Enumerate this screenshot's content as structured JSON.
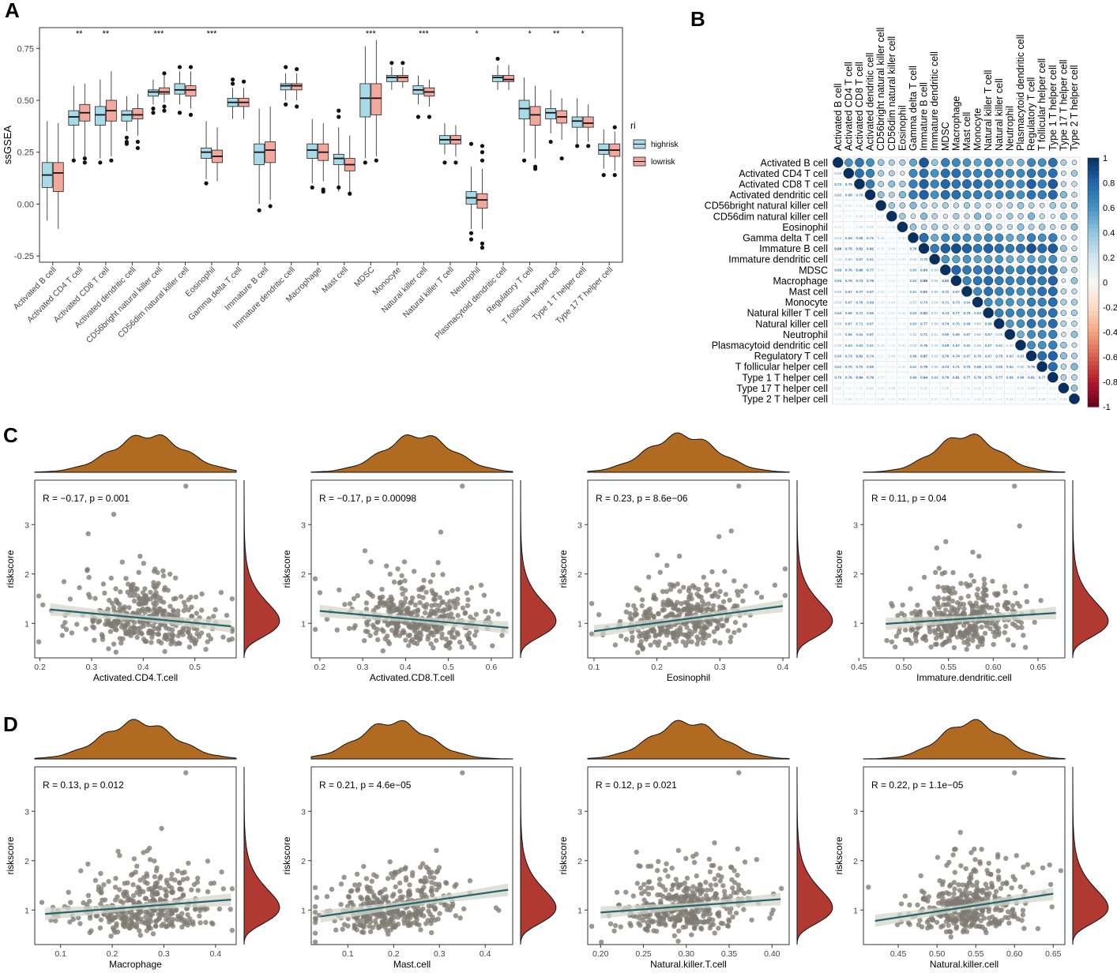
{
  "figure": {
    "panel_labels": [
      "A",
      "B",
      "C",
      "D"
    ],
    "colors": {
      "highrisk": "#a8dbe8",
      "lowrisk": "#f3a89d",
      "density_x": "#b06a22",
      "density_y": "#b03a32",
      "point": "#7f7b72",
      "fit": "#23656a",
      "band": "#d5d5cc",
      "corr_pos": "#053061",
      "corr_mid": "#f7f7f7",
      "corr_neg": "#67001f"
    }
  },
  "chart_data": [
    {
      "panel": "A",
      "type": "box",
      "ylabel": "ssGSEA",
      "ylim": [
        -0.28,
        0.85
      ],
      "yticks": [
        -0.25,
        0.0,
        0.25,
        0.5,
        0.75
      ],
      "ytick_labels": [
        "-0.25",
        "0.00",
        "0.25",
        "0.50",
        "0.75"
      ],
      "legend": {
        "title": "ri",
        "entries": [
          "highrisk",
          "lowrisk"
        ]
      },
      "categories": [
        "Activated B cell",
        "Activated CD4 T cell",
        "Activated CD8 T cell",
        "Activated dendritic cell",
        "CD56bright natural killer cell",
        "CD56dim natural killer cell",
        "Eosinophil",
        "Gamma delta T cell",
        "Immature B cell",
        "Immature dendritic cell",
        "Macrophage",
        "Mast cell",
        "MDSC",
        "Monocyte",
        "Natural killer cell",
        "Natural killer T cell",
        "Neutrophil",
        "Plasmacytoid dendritic cell",
        "Regulatory T cell",
        "T follicular helper cell",
        "Type 1 T helper cell",
        "Type 17 T helper cell"
      ],
      "significance": [
        "",
        "**",
        "**",
        "",
        "***",
        "",
        "***",
        "",
        "",
        "",
        "",
        "",
        "***",
        "",
        "***",
        "",
        "*",
        "",
        "*",
        "**",
        "*",
        ""
      ],
      "series": [
        {
          "name": "highrisk",
          "boxes": [
            [
              -0.08,
              0.08,
              0.14,
              0.2,
              0.4
            ],
            [
              0.22,
              0.38,
              0.42,
              0.45,
              0.57
            ],
            [
              0.22,
              0.38,
              0.43,
              0.47,
              0.6
            ],
            [
              0.35,
              0.4,
              0.43,
              0.45,
              0.52
            ],
            [
              0.48,
              0.52,
              0.54,
              0.55,
              0.6
            ],
            [
              0.48,
              0.53,
              0.55,
              0.58,
              0.64
            ],
            [
              0.12,
              0.22,
              0.25,
              0.27,
              0.4
            ],
            [
              0.41,
              0.47,
              0.49,
              0.51,
              0.56
            ],
            [
              0.0,
              0.19,
              0.25,
              0.29,
              0.46
            ],
            [
              0.5,
              0.55,
              0.57,
              0.58,
              0.63
            ],
            [
              0.1,
              0.22,
              0.26,
              0.29,
              0.41
            ],
            [
              0.06,
              0.19,
              0.22,
              0.24,
              0.37
            ],
            [
              0.22,
              0.42,
              0.51,
              0.58,
              0.76
            ],
            [
              0.55,
              0.59,
              0.61,
              0.62,
              0.66
            ],
            [
              0.48,
              0.53,
              0.55,
              0.57,
              0.62
            ],
            [
              0.24,
              0.29,
              0.31,
              0.33,
              0.39
            ],
            [
              -0.12,
              0.0,
              0.03,
              0.06,
              0.18
            ],
            [
              0.55,
              0.59,
              0.61,
              0.62,
              0.67
            ],
            [
              0.25,
              0.41,
              0.46,
              0.5,
              0.61
            ],
            [
              0.34,
              0.41,
              0.44,
              0.46,
              0.55
            ],
            [
              0.29,
              0.37,
              0.4,
              0.42,
              0.51
            ],
            [
              0.17,
              0.24,
              0.26,
              0.29,
              0.36
            ]
          ]
        },
        {
          "name": "lowrisk",
          "boxes": [
            [
              -0.12,
              0.06,
              0.15,
              0.2,
              0.39
            ],
            [
              0.22,
              0.4,
              0.44,
              0.48,
              0.58
            ],
            [
              0.23,
              0.4,
              0.45,
              0.5,
              0.64
            ],
            [
              0.33,
              0.41,
              0.43,
              0.46,
              0.53
            ],
            [
              0.49,
              0.53,
              0.54,
              0.56,
              0.62
            ],
            [
              0.46,
              0.52,
              0.55,
              0.57,
              0.64
            ],
            [
              0.11,
              0.2,
              0.23,
              0.26,
              0.37
            ],
            [
              0.41,
              0.47,
              0.49,
              0.51,
              0.56
            ],
            [
              0.02,
              0.2,
              0.26,
              0.3,
              0.47
            ],
            [
              0.5,
              0.55,
              0.57,
              0.58,
              0.63
            ],
            [
              0.11,
              0.21,
              0.25,
              0.29,
              0.39
            ],
            [
              0.04,
              0.16,
              0.19,
              0.22,
              0.33
            ],
            [
              0.23,
              0.43,
              0.51,
              0.58,
              0.79
            ],
            [
              0.56,
              0.59,
              0.61,
              0.62,
              0.66
            ],
            [
              0.47,
              0.52,
              0.54,
              0.56,
              0.6
            ],
            [
              0.23,
              0.29,
              0.31,
              0.33,
              0.38
            ],
            [
              -0.12,
              -0.02,
              0.02,
              0.05,
              0.17
            ],
            [
              0.55,
              0.59,
              0.6,
              0.62,
              0.67
            ],
            [
              0.22,
              0.38,
              0.43,
              0.47,
              0.57
            ],
            [
              0.31,
              0.39,
              0.42,
              0.45,
              0.51
            ],
            [
              0.3,
              0.37,
              0.39,
              0.42,
              0.48
            ],
            [
              0.16,
              0.23,
              0.26,
              0.29,
              0.35
            ]
          ]
        }
      ],
      "outliers": [
        [
          [],
          []
        ],
        [
          [
            0.21
          ],
          [
            0.2,
            0.22
          ]
        ],
        [
          [
            0.2
          ],
          [
            0.21
          ]
        ],
        [
          [
            0.32,
            0.3,
            0.29
          ],
          [
            0.3,
            0.27
          ]
        ],
        [
          [
            0.46,
            0.44
          ],
          [
            0.63,
            0.47,
            0.45
          ]
        ],
        [
          [
            0.66,
            0.44
          ],
          [
            0.66,
            0.43
          ]
        ],
        [
          [
            0.1
          ],
          []
        ],
        [
          [
            0.6,
            0.58
          ],
          [
            0.59
          ]
        ],
        [
          [
            -0.03
          ],
          [
            -0.01
          ]
        ],
        [
          [
            0.66,
            0.48
          ],
          [
            0.65,
            0.47
          ]
        ],
        [
          [
            0.08
          ],
          [
            0.07,
            0.06
          ]
        ],
        [
          [
            0.45,
            0.42,
            0.08
          ],
          [
            0.05
          ]
        ],
        [
          [
            0.2
          ],
          [
            0.21
          ]
        ],
        [
          [
            0.68
          ],
          [
            0.68
          ]
        ],
        [
          [
            0.42
          ],
          [
            0.42
          ]
        ],
        [
          [
            0.2
          ],
          [
            0.2
          ]
        ],
        [
          [
            0.29,
            -0.17,
            -0.14
          ],
          [
            0.28,
            0.25,
            0.21,
            -0.19,
            -0.21
          ]
        ],
        [
          [
            0.7
          ],
          []
        ],
        [
          [
            0.21
          ],
          [
            0.18,
            0.17
          ]
        ],
        [
          [
            0.3
          ],
          [
            0.22
          ]
        ],
        [
          [
            0.28
          ],
          [
            0.28
          ]
        ],
        [
          [
            0.14
          ],
          [
            0.14,
            0.37
          ]
        ]
      ]
    },
    {
      "panel": "B",
      "type": "heatmap",
      "labels": [
        "Activated B cell",
        "Activated CD4 T cell",
        "Activated CD8 T cell",
        "Activated dendritic cell",
        "CD56bright natural killer cell",
        "CD56dim natural killer cell",
        "Eosinophil",
        "Gamma delta T cell",
        "Immature B cell",
        "Immature dendritic cell",
        "MDSC",
        "Macrophage",
        "Mast cell",
        "Monocyte",
        "Natural killer T cell",
        "Natural killer cell",
        "Neutrophil",
        "Plasmacytoid dendritic cell",
        "Regulatory T cell",
        "T follicular helper cell",
        "Type 1 T helper cell",
        "Type 17 T helper cell",
        "Type 2 T helper cell"
      ],
      "colorbar_ticks": [
        "1",
        "0.8",
        "0.6",
        "0.4",
        "0.2",
        "0",
        "-0.2",
        "-0.4",
        "-0.6",
        "-0.8",
        "-1"
      ],
      "coeff_first_column": [
        null,
        0.6,
        0.73,
        0.62,
        0.39,
        0.33,
        0.34,
        0.53,
        0.86,
        0.39,
        0.69,
        0.65,
        0.6,
        0.53,
        0.64,
        0.58,
        0.46,
        0.48,
        0.65,
        0.62,
        0.75,
        0.33,
        0.22
      ]
    },
    {
      "panel": "C",
      "type": "scatter",
      "plots": [
        {
          "xlabel": "Activated.CD4.T.cell",
          "ylabel": "riskscore",
          "stat": "R = −0.17, p = 0.001",
          "xlim": [
            0.19,
            0.58
          ],
          "xticks": [
            0.2,
            0.3,
            0.4,
            0.5
          ],
          "xtick_labels": [
            "0.2",
            "0.3",
            "0.4",
            "0.5"
          ],
          "ylim": [
            0.3,
            3.9
          ],
          "yticks": [
            1,
            2,
            3
          ],
          "ytick_labels": [
            "1",
            "2",
            "3"
          ],
          "fit": [
            [
              0.22,
              1.28
            ],
            [
              0.57,
              0.94
            ]
          ],
          "x_center": 0.41,
          "x_spread": 0.07
        },
        {
          "xlabel": "Activated.CD8.T.cell",
          "ylabel": "riskscore",
          "stat": "R = −0.17, p = 0.00098",
          "xlim": [
            0.18,
            0.65
          ],
          "xticks": [
            0.2,
            0.3,
            0.4,
            0.5,
            0.6
          ],
          "xtick_labels": [
            "0.2",
            "0.3",
            "0.4",
            "0.5",
            "0.6"
          ],
          "ylim": [
            0.3,
            3.9
          ],
          "yticks": [
            1,
            2,
            3
          ],
          "ytick_labels": [
            "1",
            "2",
            "3"
          ],
          "fit": [
            [
              0.2,
              1.25
            ],
            [
              0.64,
              0.91
            ]
          ],
          "x_center": 0.43,
          "x_spread": 0.08
        },
        {
          "xlabel": "Eosinophil",
          "ylabel": "riskscore",
          "stat": "R = 0.23, p = 8.6e−06",
          "xlim": [
            0.09,
            0.41
          ],
          "xticks": [
            0.1,
            0.2,
            0.3,
            0.4
          ],
          "xtick_labels": [
            "0.1",
            "0.2",
            "0.3",
            "0.4"
          ],
          "ylim": [
            0.3,
            3.9
          ],
          "yticks": [
            1,
            2,
            3
          ],
          "ytick_labels": [
            "1",
            "2",
            "3"
          ],
          "fit": [
            [
              0.1,
              0.84
            ],
            [
              0.4,
              1.35
            ]
          ],
          "x_center": 0.24,
          "x_spread": 0.055
        },
        {
          "xlabel": "Immature.dendritic.cell",
          "ylabel": "riskscore",
          "stat": "R = 0.11, p = 0.04",
          "xlim": [
            0.455,
            0.68
          ],
          "xticks": [
            0.45,
            0.5,
            0.55,
            0.6,
            0.65
          ],
          "xtick_labels": [
            "0.45",
            "0.50",
            "0.55",
            "0.60",
            "0.65"
          ],
          "ylim": [
            0.3,
            3.9
          ],
          "yticks": [
            1,
            2,
            3
          ],
          "ytick_labels": [
            "1",
            "2",
            "3"
          ],
          "fit": [
            [
              0.48,
              0.99
            ],
            [
              0.67,
              1.21
            ]
          ],
          "x_center": 0.57,
          "x_spread": 0.035
        }
      ]
    },
    {
      "panel": "D",
      "type": "scatter",
      "plots": [
        {
          "xlabel": "Macrophage",
          "ylabel": "riskscore",
          "stat": "R = 0.13, p = 0.012",
          "xlim": [
            0.05,
            0.44
          ],
          "xticks": [
            0.1,
            0.2,
            0.3,
            0.4
          ],
          "xtick_labels": [
            "0.1",
            "0.2",
            "0.3",
            "0.4"
          ],
          "ylim": [
            0.3,
            3.9
          ],
          "yticks": [
            1,
            2,
            3
          ],
          "ytick_labels": [
            "1",
            "2",
            "3"
          ],
          "fit": [
            [
              0.07,
              0.92
            ],
            [
              0.43,
              1.21
            ]
          ],
          "x_center": 0.25,
          "x_spread": 0.07
        },
        {
          "xlabel": "Mast.cell",
          "ylabel": "riskscore",
          "stat": "R = 0.21, p = 4.6e−05",
          "xlim": [
            0.02,
            0.46
          ],
          "xticks": [
            0.1,
            0.2,
            0.3,
            0.4
          ],
          "xtick_labels": [
            "0.1",
            "0.2",
            "0.3",
            "0.4"
          ],
          "ylim": [
            0.3,
            3.9
          ],
          "yticks": [
            1,
            2,
            3
          ],
          "ytick_labels": [
            "1",
            "2",
            "3"
          ],
          "fit": [
            [
              0.04,
              0.87
            ],
            [
              0.45,
              1.41
            ]
          ],
          "x_center": 0.2,
          "x_spread": 0.075
        },
        {
          "xlabel": "Natural.killer.T.cell",
          "ylabel": "riskscore",
          "stat": "R = 0.12, p = 0.021",
          "xlim": [
            0.185,
            0.42
          ],
          "xticks": [
            0.2,
            0.25,
            0.3,
            0.35,
            0.4
          ],
          "xtick_labels": [
            "0.20",
            "0.25",
            "0.30",
            "0.35",
            "0.40"
          ],
          "ylim": [
            0.3,
            3.9
          ],
          "yticks": [
            1,
            2,
            3
          ],
          "ytick_labels": [
            "1",
            "2",
            "3"
          ],
          "fit": [
            [
              0.2,
              0.95
            ],
            [
              0.41,
              1.22
            ]
          ],
          "x_center": 0.3,
          "x_spread": 0.04
        },
        {
          "xlabel": "Natural.killer.cell",
          "ylabel": "riskscore",
          "stat": "R = 0.22, p = 1.1e−05",
          "xlim": [
            0.405,
            0.665
          ],
          "xticks": [
            0.45,
            0.5,
            0.55,
            0.6,
            0.65
          ],
          "xtick_labels": [
            "0.45",
            "0.50",
            "0.55",
            "0.60",
            "0.65"
          ],
          "ylim": [
            0.3,
            3.9
          ],
          "yticks": [
            1,
            2,
            3
          ],
          "ytick_labels": [
            "1",
            "2",
            "3"
          ],
          "fit": [
            [
              0.42,
              0.78
            ],
            [
              0.65,
              1.33
            ]
          ],
          "x_center": 0.545,
          "x_spread": 0.04
        }
      ]
    }
  ]
}
